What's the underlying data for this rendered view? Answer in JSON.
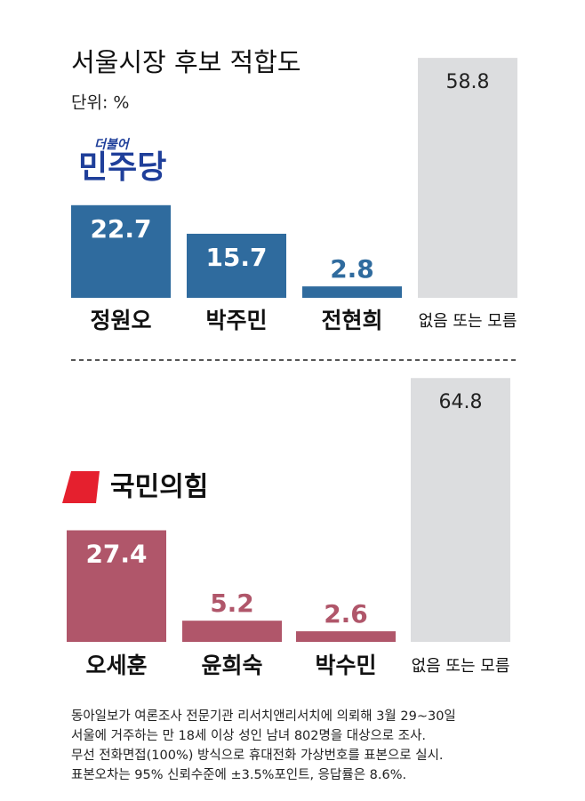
{
  "title": "서울시장 후보 적합도",
  "unit": "단위: %",
  "chart_data": [
    {
      "type": "bar",
      "party_small": "더불어",
      "party": "민주당",
      "categories": [
        "정원오",
        "박주민",
        "전현희",
        "없음 또는 모름"
      ],
      "values": [
        22.7,
        15.7,
        2.8,
        58.8
      ],
      "colors": [
        "#2f6b9e",
        "#2f6b9e",
        "#2f6b9e",
        "#dcdddf"
      ]
    },
    {
      "type": "bar",
      "party": "국민의힘",
      "categories": [
        "오세훈",
        "윤희숙",
        "박수민",
        "없음 또는 모름"
      ],
      "values": [
        27.4,
        5.2,
        2.6,
        64.8
      ],
      "colors": [
        "#b0566a",
        "#b0566a",
        "#b0566a",
        "#dcdddf"
      ]
    }
  ],
  "footnote": [
    "동아일보가 여론조사 전문기관 리서치앤리서치에 의뢰해 3월 29~30일",
    "서울에 거주하는 만 18세 이상 성인 남녀 802명을 대상으로 조사.",
    "무선 전화면접(100%) 방식으로 휴대전화 가상번호를 표본으로 실시.",
    "표본오차는 95% 신뢰수준에 ±3.5%포인트, 응답률은 8.6%."
  ]
}
